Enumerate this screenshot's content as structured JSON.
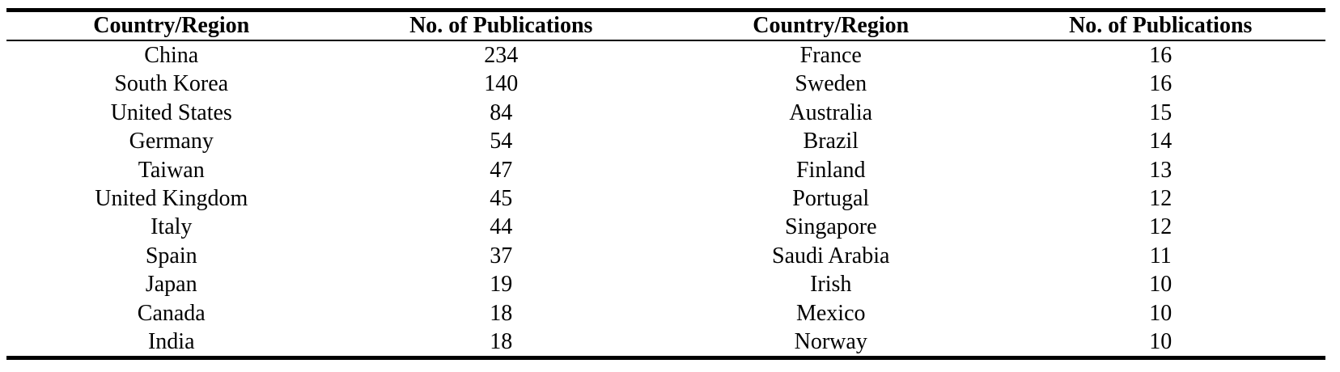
{
  "colors": {
    "text": "#000000",
    "background": "#ffffff",
    "rule": "#000000"
  },
  "table": {
    "headers": [
      "Country/Region",
      "No. of Publications",
      "Country/Region",
      "No. of Publications"
    ],
    "rows": [
      [
        "China",
        "234",
        "France",
        "16"
      ],
      [
        "South Korea",
        "140",
        "Sweden",
        "16"
      ],
      [
        "United States",
        "84",
        "Australia",
        "15"
      ],
      [
        "Germany",
        "54",
        "Brazil",
        "14"
      ],
      [
        "Taiwan",
        "47",
        "Finland",
        "13"
      ],
      [
        "United Kingdom",
        "45",
        "Portugal",
        "12"
      ],
      [
        "Italy",
        "44",
        "Singapore",
        "12"
      ],
      [
        "Spain",
        "37",
        "Saudi Arabia",
        "11"
      ],
      [
        "Japan",
        "19",
        "Irish",
        "10"
      ],
      [
        "Canada",
        "18",
        "Mexico",
        "10"
      ],
      [
        "India",
        "18",
        "Norway",
        "10"
      ]
    ]
  }
}
